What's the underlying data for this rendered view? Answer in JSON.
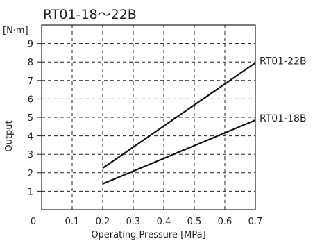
{
  "chart_data": {
    "type": "line",
    "title": "RT01-18〜22B",
    "xlabel": "Operating Pressure [MPa]",
    "ylabel": "Output",
    "yunit": "[N·m]",
    "xlim": [
      0,
      0.7
    ],
    "ylim": [
      0,
      10
    ],
    "xticks": [
      0,
      0.1,
      0.2,
      0.3,
      0.4,
      0.5,
      0.6,
      0.7
    ],
    "xtick_labels": [
      "0",
      "0.1",
      "0.2",
      "0.3",
      "0.4",
      "0.5",
      "0.6",
      "0.7"
    ],
    "yticks": [
      1,
      2,
      3,
      4,
      5,
      6,
      7,
      8,
      9
    ],
    "ytick_labels": [
      "1",
      "2",
      "3",
      "4",
      "5",
      "6",
      "7",
      "8",
      "9"
    ],
    "grid": true,
    "series": [
      {
        "name": "RT01-22B",
        "x": [
          0.2,
          0.7
        ],
        "y": [
          2.25,
          7.95
        ]
      },
      {
        "name": "RT01-18B",
        "x": [
          0.2,
          0.7
        ],
        "y": [
          1.4,
          4.85
        ]
      }
    ]
  }
}
